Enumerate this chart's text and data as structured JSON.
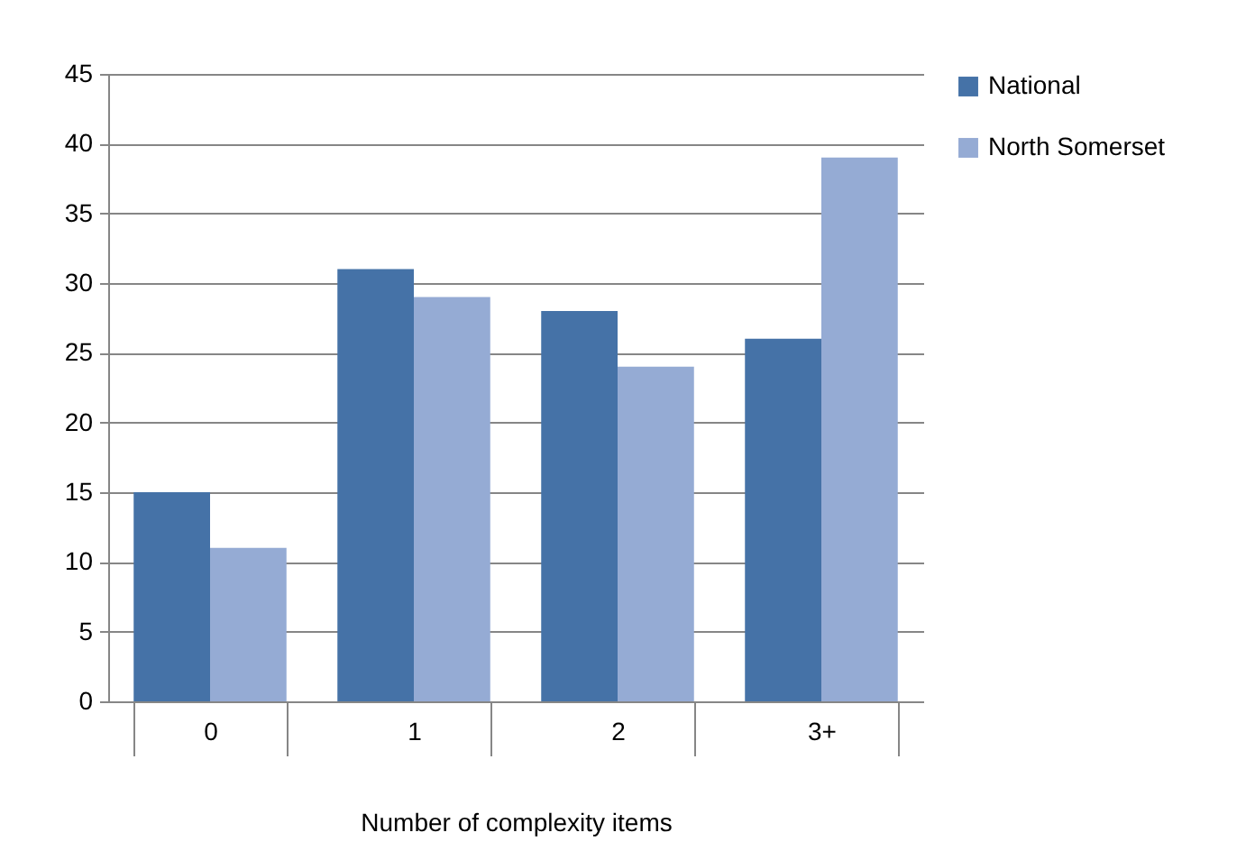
{
  "chart_data": {
    "type": "bar",
    "xlabel": "Number of complexity items",
    "categories": [
      "0",
      "1",
      "2",
      "3+"
    ],
    "series": [
      {
        "name": "National",
        "color": "#4572a7",
        "values": [
          15,
          31,
          28,
          26
        ]
      },
      {
        "name": "North Somerset",
        "color": "#95abd4",
        "values": [
          11,
          29,
          24,
          39
        ]
      }
    ],
    "ylim": [
      0,
      45
    ],
    "yticks": [
      0,
      5,
      10,
      15,
      20,
      25,
      30,
      35,
      40,
      45
    ],
    "grid": "y",
    "legend": "right"
  }
}
